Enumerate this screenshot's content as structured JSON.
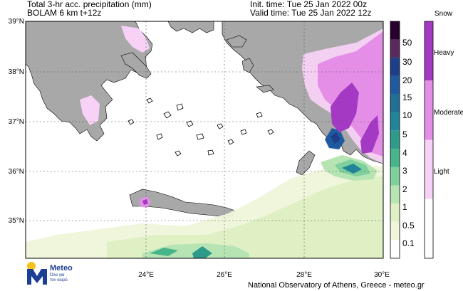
{
  "header": {
    "title_line1": "Total 3-hr acc. precipitation (mm)",
    "title_line2": "BOLAM 6 km t+12z",
    "init_time": "Init. time: Tue 25 Jan 2022 00z",
    "valid_time": "Valid time: Tue 25 Jan 2022 12z"
  },
  "axes": {
    "lat_labels": [
      "39°N",
      "38°N",
      "37°N",
      "36°N",
      "35°N"
    ],
    "lon_labels": [
      "24°E",
      "26°E",
      "28°E",
      "30°E"
    ]
  },
  "colorbar": {
    "labels": [
      "50",
      "30",
      "20",
      "15",
      "10",
      "5",
      "4",
      "3",
      "2",
      "1",
      "0.5",
      "0.1"
    ],
    "colors": [
      "#28002e",
      "#5a2a5f",
      "#1d3f8a",
      "#1f5a9e",
      "#207095",
      "#21849a",
      "#2e9a8a",
      "#47b58a",
      "#7ed09c",
      "#b7e4b3",
      "#dff0c4",
      "#eff6d9",
      "#ffffff"
    ]
  },
  "snow_bar": {
    "title": "Snow",
    "labels": [
      "Heavy",
      "Moderate",
      "Light"
    ],
    "colors": [
      "#a43ac4",
      "#e58ee8",
      "#f7d2f6",
      "#ffffff"
    ]
  },
  "logo": {
    "name": "Meteo",
    "tagline1": "Όλα για",
    "tagline2": "τον καιρό"
  },
  "footer": "National Observatory of Athens, Greece - meteo.gr",
  "colors": {
    "land": "#a8a8a8",
    "sea": "#ffffff",
    "accent": "#1b3f94"
  }
}
